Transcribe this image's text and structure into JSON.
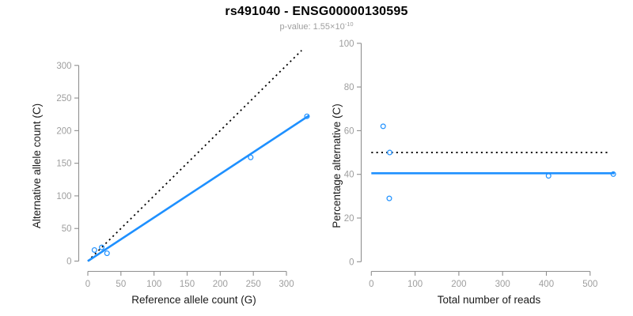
{
  "header": {
    "title": "rs491040 - ENSG00000130595",
    "subtitle_prefix": "p-value: 1.55×10",
    "subtitle_exponent": "-10"
  },
  "colors": {
    "accent_blue": "#1E90FF",
    "line_black": "#000000",
    "axis_gray": "#8f8f8f",
    "tick_label_gray": "#9e9e9e",
    "axis_label_color": "#1a1a1a"
  },
  "chart_data": [
    {
      "type": "scatter",
      "panel": "allele-counts",
      "xlabel": "Reference allele count (G)",
      "ylabel": "Alternative allele count (C)",
      "xticks": [
        0,
        50,
        100,
        150,
        200,
        250,
        300
      ],
      "yticks": [
        0,
        50,
        100,
        150,
        200,
        250,
        300
      ],
      "xlim": [
        0,
        334
      ],
      "ylim": [
        0,
        331
      ],
      "grid": false,
      "legend": null,
      "points": [
        [
          10,
          17
        ],
        [
          21,
          21
        ],
        [
          29,
          12
        ],
        [
          246,
          159
        ],
        [
          331,
          222
        ]
      ],
      "lines": [
        {
          "name": "identity-line",
          "style": "dotted",
          "color": "#000000",
          "from": [
            0,
            0
          ],
          "to": [
            323,
            323
          ]
        },
        {
          "name": "fit-line",
          "style": "solid",
          "color": "#1E90FF",
          "from": [
            0,
            0
          ],
          "to": [
            334,
            223
          ]
        }
      ]
    },
    {
      "type": "scatter",
      "panel": "percentage-vs-reads",
      "xlabel": "Total number of reads",
      "ylabel": "Percentage alternative (C)",
      "xticks": [
        0,
        100,
        200,
        300,
        400,
        500
      ],
      "yticks": [
        0,
        20,
        40,
        60,
        80,
        100
      ],
      "xlim": [
        0,
        556
      ],
      "ylim": [
        0,
        100
      ],
      "grid": false,
      "legend": null,
      "points": [
        [
          27,
          62
        ],
        [
          42,
          50
        ],
        [
          41,
          29
        ],
        [
          405,
          39.3
        ],
        [
          553,
          40.1
        ]
      ],
      "lines": [
        {
          "name": "fifty-percent-line",
          "style": "dotted",
          "color": "#000000",
          "from": [
            0,
            50
          ],
          "to": [
            540,
            50
          ]
        },
        {
          "name": "mean-percentage-line",
          "style": "solid",
          "color": "#1E90FF",
          "from": [
            0,
            40.5
          ],
          "to": [
            556,
            40.5
          ]
        }
      ]
    }
  ]
}
